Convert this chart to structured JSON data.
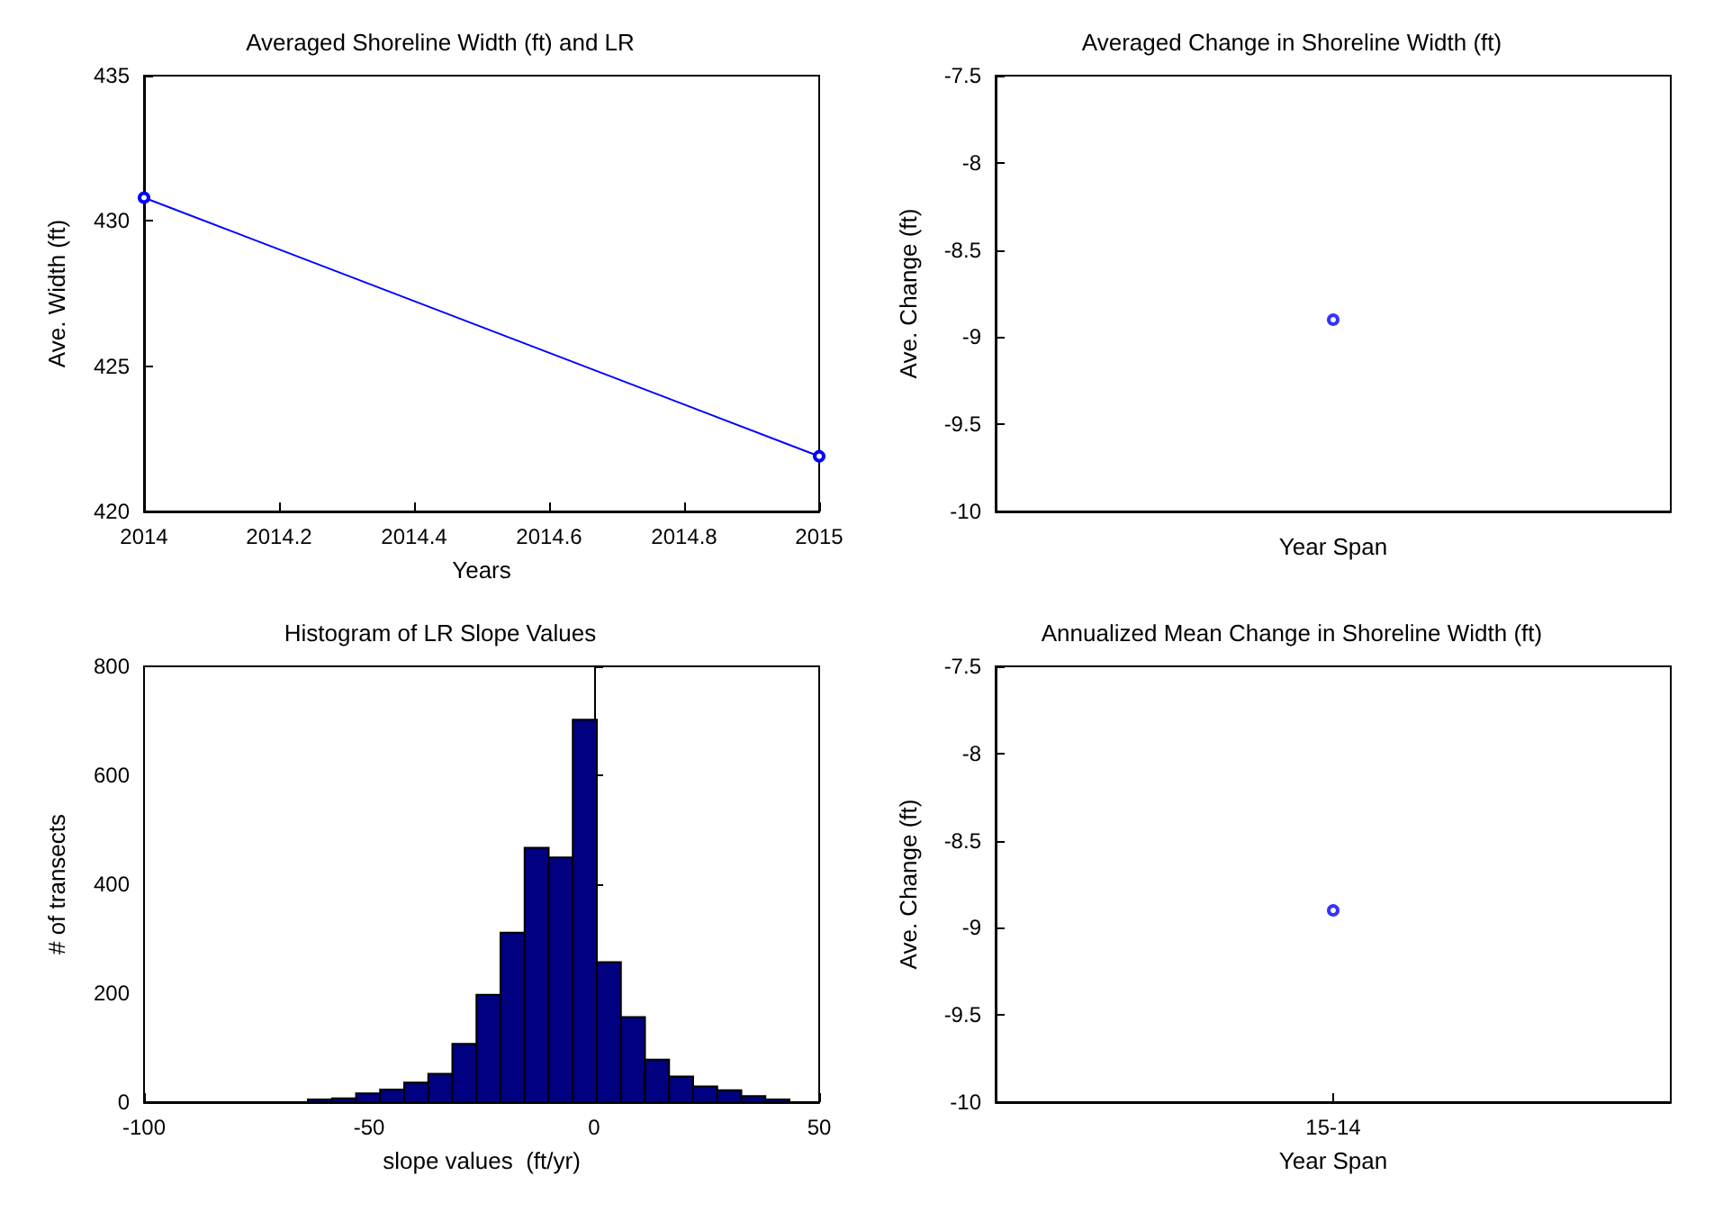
{
  "chart_data": [
    {
      "type": "line",
      "title": "Averaged Shoreline Width (ft) and LR",
      "xlabel": "Years",
      "ylabel": "Ave. Width (ft)",
      "x": [
        2014,
        2015
      ],
      "values": [
        430.8,
        421.9
      ],
      "color": "#0000ff",
      "marker": "circle",
      "xlim": [
        2014,
        2015
      ],
      "xticks": [
        2014,
        2014.2,
        2014.4,
        2014.6,
        2014.8,
        2015
      ],
      "ylim": [
        420,
        435
      ],
      "yticks": [
        420,
        425,
        430,
        435
      ]
    },
    {
      "type": "scatter",
      "title": "Averaged Change in Shoreline Width (ft)",
      "xlabel": "Year Span",
      "ylabel": "Ave. Change (ft)",
      "categories": [
        null
      ],
      "values": [
        -8.9
      ],
      "color": "#0000ff",
      "marker": "circle",
      "ylim": [
        -10,
        -7.5
      ],
      "yticks": [
        -10,
        -9.5,
        -9,
        -8.5,
        -8,
        -7.5
      ]
    },
    {
      "type": "histogram",
      "title": "Histogram of LR Slope Values",
      "xlabel": "slope values  (ft/yr)",
      "ylabel": "# of transects",
      "bins": [
        -63.6,
        -58.25,
        -52.9,
        -47.55,
        -42.2,
        -36.85,
        -31.5,
        -26.15,
        -20.8,
        -15.45,
        -10.1,
        -4.75,
        0.6,
        5.95,
        11.3,
        16.65,
        22,
        27.35,
        32.7,
        38.05,
        43.4
      ],
      "values": [
        5,
        7,
        16,
        23,
        36,
        52,
        107,
        197,
        311,
        467,
        449,
        702,
        257,
        156,
        78,
        47,
        29,
        22,
        11,
        5
      ],
      "color": "#000080",
      "xlim": [
        -100,
        50
      ],
      "xticks": [
        -100,
        -50,
        0,
        50
      ],
      "ylim": [
        0,
        800
      ],
      "yticks": [
        0,
        200,
        400,
        600,
        800
      ]
    },
    {
      "type": "scatter",
      "title": "Annualized Mean Change in Shoreline Width (ft)",
      "xlabel": "Year Span",
      "ylabel": "Ave. Change (ft)",
      "categories": [
        "15-14"
      ],
      "values": [
        -8.9
      ],
      "color": "#0000ff",
      "marker": "circle",
      "ylim": [
        -10,
        -7.5
      ],
      "yticks": [
        -10,
        -9.5,
        -9,
        -8.5,
        -8,
        -7.5
      ]
    }
  ]
}
